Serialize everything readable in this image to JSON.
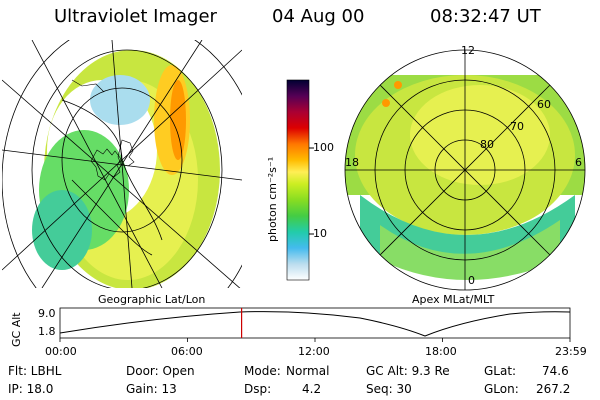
{
  "header": {
    "instrument": "Ultraviolet Imager",
    "date": "04 Aug 00",
    "time": "08:32:47 UT"
  },
  "left_panel": {
    "label": "Geographic Lat/Lon"
  },
  "right_panel": {
    "label": "Apex MLat/MLT",
    "lat_rings": [
      "80",
      "70",
      "60"
    ],
    "mlt_labels": {
      "top": "12",
      "left": "18",
      "right": "6",
      "bottom": "0"
    }
  },
  "colorbar": {
    "unit_label": "photon cm⁻²s⁻¹",
    "ticks": [
      "100",
      "10"
    ],
    "colors": [
      "#000033",
      "#550055",
      "#aa0033",
      "#dd0000",
      "#ff7700",
      "#ffbb00",
      "#ffee55",
      "#ccee22",
      "#88dd22",
      "#44cc44",
      "#22ccaa",
      "#44bbee",
      "#bbddee",
      "#ffffff"
    ]
  },
  "altitude_strip": {
    "y_title": "GC Alt",
    "y_ticks": [
      "9.0",
      "1.8"
    ],
    "x_ticks": [
      "00:00",
      "06:00",
      "12:00",
      "18:00",
      "23:59"
    ],
    "current_time_fraction": 0.356
  },
  "status": {
    "flt": "Flt: LBHL",
    "door": "Door: Open",
    "mode_label": "Mode:",
    "mode_value": "Normal",
    "gc_alt": "GC Alt: 9.3 Re",
    "glat_label": "GLat:",
    "glat_value": "74.6",
    "ip": "IP: 18.0",
    "gain": "Gain: 13",
    "dsp_label": "Dsp:",
    "dsp_value": "4.2",
    "seq": "Seq: 30",
    "glon_label": "GLon:",
    "glon_value": "267.2"
  }
}
